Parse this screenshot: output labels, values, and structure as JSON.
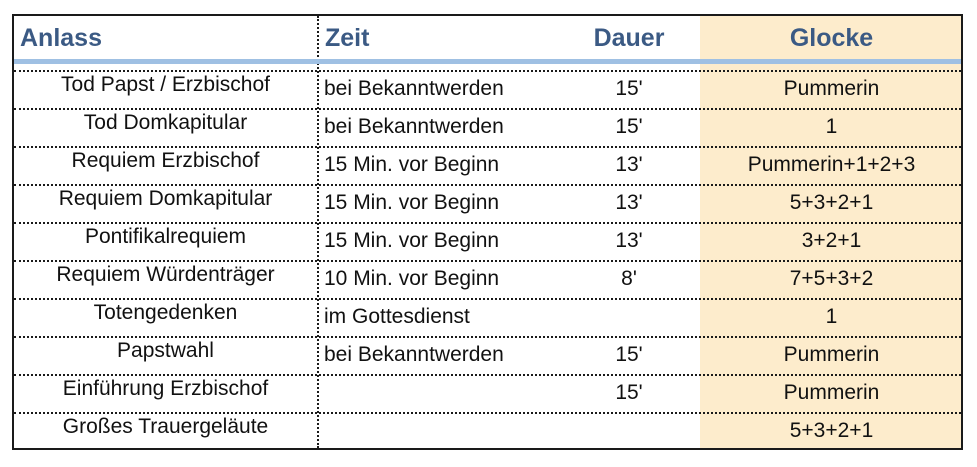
{
  "table": {
    "headers": {
      "anlass": "Anlass",
      "zeit": "Zeit",
      "dauer": "Dauer",
      "glocke": "Glocke"
    },
    "rows": [
      {
        "anlass": "Tod Papst / Erzbischof",
        "zeit": "bei Bekanntwerden",
        "dauer": "15'",
        "glocke": "Pummerin"
      },
      {
        "anlass": "Tod Domkapitular",
        "zeit": "bei Bekanntwerden",
        "dauer": "15'",
        "glocke": "1"
      },
      {
        "anlass": "Requiem Erzbischof",
        "zeit": "15 Min. vor Beginn",
        "dauer": "13'",
        "glocke": "Pummerin+1+2+3"
      },
      {
        "anlass": "Requiem Domkapitular",
        "zeit": "15 Min. vor Beginn",
        "dauer": "13'",
        "glocke": "5+3+2+1"
      },
      {
        "anlass": "Pontifikalrequiem",
        "zeit": "15 Min. vor Beginn",
        "dauer": "13'",
        "glocke": "3+2+1"
      },
      {
        "anlass": "Requiem Würdenträger",
        "zeit": "10 Min. vor Beginn",
        "dauer": "8'",
        "glocke": "7+5+3+2"
      },
      {
        "anlass": "Totengedenken",
        "zeit": "im Gottesdienst",
        "dauer": "",
        "glocke": "1"
      },
      {
        "anlass": "Papstwahl",
        "zeit": "bei Bekanntwerden",
        "dauer": "15'",
        "glocke": "Pummerin"
      },
      {
        "anlass": "Einführung Erzbischof",
        "zeit": "",
        "dauer": "15'",
        "glocke": "Pummerin"
      },
      {
        "anlass": "Großes Trauergeläute",
        "zeit": "",
        "dauer": "",
        "glocke": "5+3+2+1"
      }
    ]
  },
  "colors": {
    "header_text": "#3b5a84",
    "header_rule": "#9fc0e3",
    "bell_column_bg": "#fdeccc",
    "border": "#1a1a1a"
  }
}
